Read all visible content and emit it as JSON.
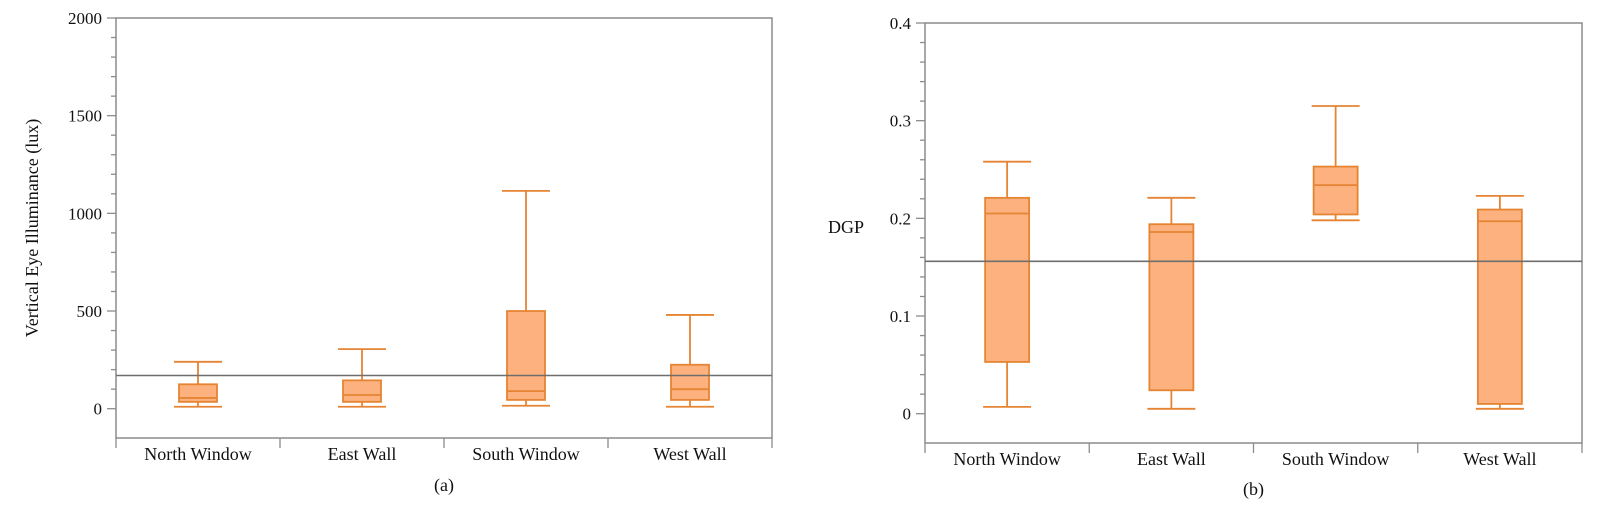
{
  "chart_data": [
    {
      "type": "box",
      "panel_label": "(a)",
      "ylabel": "Vertical Eye Illuminance (lux)",
      "ylim": [
        -150,
        2000
      ],
      "yticks": [
        0,
        500,
        1000,
        1500,
        2000
      ],
      "ytick_labels": [
        "0",
        "500",
        "1000",
        "1500",
        "2000"
      ],
      "minor_step": 100,
      "categories": [
        "North Window",
        "East Wall",
        "South Window",
        "West Wall"
      ],
      "reference_line": 170,
      "boxes": [
        {
          "category": "North Window",
          "min": 10,
          "q1": 35,
          "median": 55,
          "q3": 125,
          "max": 240
        },
        {
          "category": "East Wall",
          "min": 10,
          "q1": 35,
          "median": 70,
          "q3": 145,
          "max": 305
        },
        {
          "category": "South Window",
          "min": 15,
          "q1": 45,
          "median": 90,
          "q3": 500,
          "max": 1115
        },
        {
          "category": "West Wall",
          "min": 10,
          "q1": 45,
          "median": 100,
          "q3": 225,
          "max": 480
        }
      ],
      "box_fill": "#fdb17e",
      "box_stroke": "#e58433",
      "grid": false
    },
    {
      "type": "box",
      "panel_label": "(b)",
      "ylabel": "DGP",
      "ylim": [
        -0.03,
        0.4
      ],
      "yticks": [
        0,
        0.1,
        0.2,
        0.3,
        0.4
      ],
      "ytick_labels": [
        "0",
        "0.1",
        "0.2",
        "0.3",
        "0.4"
      ],
      "minor_step": 0.02,
      "categories": [
        "North Window",
        "East Wall",
        "South Window",
        "West Wall"
      ],
      "reference_line": 0.156,
      "boxes": [
        {
          "category": "North Window",
          "min": 0.007,
          "q1": 0.053,
          "median": 0.205,
          "q3": 0.221,
          "max": 0.258
        },
        {
          "category": "East Wall",
          "min": 0.005,
          "q1": 0.024,
          "median": 0.186,
          "q3": 0.194,
          "max": 0.221
        },
        {
          "category": "South Window",
          "min": 0.198,
          "q1": 0.204,
          "median": 0.234,
          "q3": 0.253,
          "max": 0.315
        },
        {
          "category": "West Wall",
          "min": 0.005,
          "q1": 0.01,
          "median": 0.197,
          "q3": 0.209,
          "max": 0.223
        }
      ],
      "box_fill": "#fdb17e",
      "box_stroke": "#e58433",
      "grid": false
    }
  ]
}
